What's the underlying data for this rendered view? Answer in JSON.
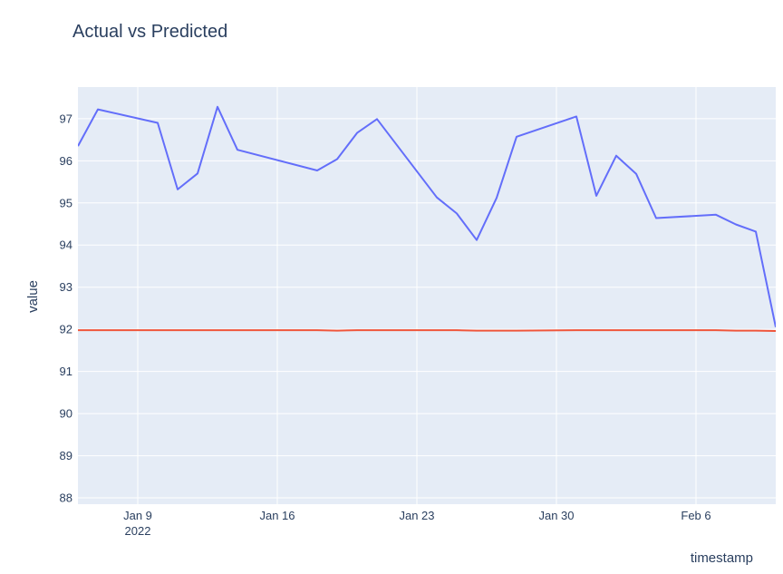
{
  "chart_data": {
    "type": "line",
    "title": "Actual vs Predicted",
    "xlabel": "timestamp",
    "ylabel": "value",
    "x": [
      "2022-01-06",
      "2022-01-07",
      "2022-01-10",
      "2022-01-11",
      "2022-01-12",
      "2022-01-13",
      "2022-01-14",
      "2022-01-18",
      "2022-01-19",
      "2022-01-20",
      "2022-01-21",
      "2022-01-24",
      "2022-01-25",
      "2022-01-26",
      "2022-01-27",
      "2022-01-28",
      "2022-01-31",
      "2022-02-01",
      "2022-02-02",
      "2022-02-03",
      "2022-02-04",
      "2022-02-07",
      "2022-02-08",
      "2022-02-09",
      "2022-02-10"
    ],
    "series": [
      {
        "color": "#636efa",
        "values": [
          96.35,
          97.22,
          96.9,
          95.32,
          95.7,
          97.28,
          96.26,
          95.77,
          96.04,
          96.66,
          96.99,
          95.13,
          94.75,
          94.12,
          95.12,
          96.57,
          97.05,
          95.17,
          96.12,
          95.69,
          94.64,
          94.72,
          94.49,
          94.32,
          92.05
        ]
      },
      {
        "color": "#ef553b",
        "values": [
          91.98,
          91.98,
          91.98,
          91.98,
          91.98,
          91.98,
          91.98,
          91.98,
          91.97,
          91.98,
          91.98,
          91.98,
          91.98,
          91.97,
          91.97,
          91.97,
          91.98,
          91.98,
          91.98,
          91.98,
          91.98,
          91.98,
          91.97,
          91.97,
          91.96
        ]
      }
    ],
    "xlim": [
      "2022-01-06",
      "2022-02-10"
    ],
    "ylim": [
      87.85,
      97.75
    ],
    "yticks": [
      "88",
      "89",
      "90",
      "91",
      "92",
      "93",
      "94",
      "95",
      "96",
      "97"
    ],
    "xticks": [
      {
        "date": "2022-01-09",
        "label": "Jan 9",
        "sublabel": "2022"
      },
      {
        "date": "2022-01-16",
        "label": "Jan 16",
        "sublabel": ""
      },
      {
        "date": "2022-01-23",
        "label": "Jan 23",
        "sublabel": ""
      },
      {
        "date": "2022-01-30",
        "label": "Jan 30",
        "sublabel": ""
      },
      {
        "date": "2022-02-06",
        "label": "Feb 6",
        "sublabel": ""
      }
    ],
    "grid": true,
    "colors": {
      "plot_bg": "#e5ecf6",
      "grid": "#ffffff",
      "text": "#2a3f5f"
    }
  }
}
